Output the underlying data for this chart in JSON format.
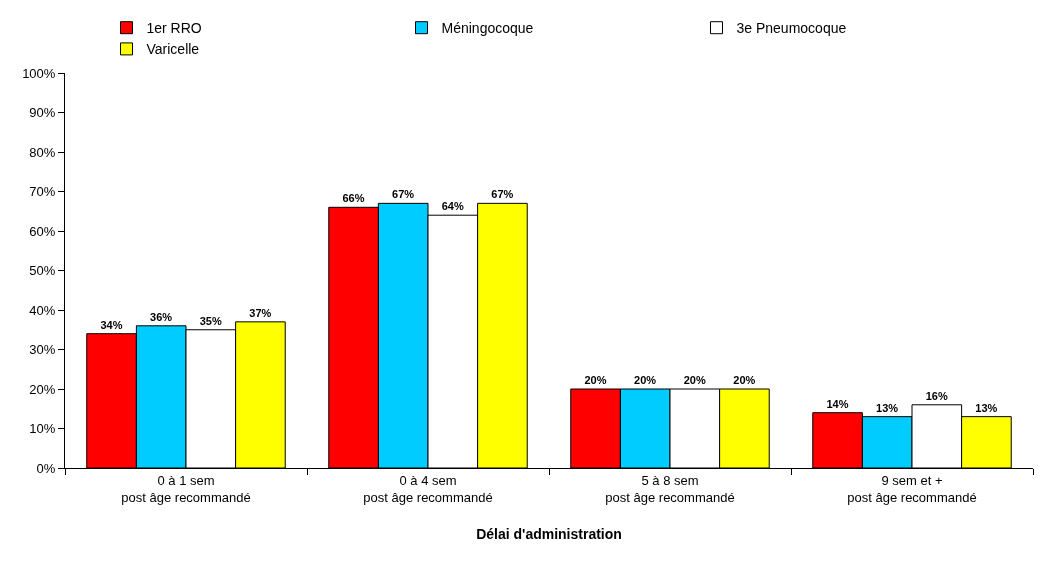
{
  "chart_data": {
    "type": "bar",
    "xlabel": "Délai d'administration",
    "categories": [
      "0 à 1 sem\npost âge recommandé",
      "0 à 4 sem\npost âge recommandé",
      "5 à 8 sem\npost âge recommandé",
      "9 sem et +\npost âge recommandé"
    ],
    "series": [
      {
        "name": "1er RRO",
        "color": "#ff0000",
        "values": [
          34,
          66,
          20,
          14
        ],
        "value_labels": [
          "34%",
          "66%",
          "20%",
          "14%"
        ]
      },
      {
        "name": "Méningocoque",
        "color": "#00ccff",
        "values": [
          36,
          67,
          20,
          13
        ],
        "value_labels": [
          "36%",
          "67%",
          "20%",
          "13%"
        ]
      },
      {
        "name": "3e Pneumocoque",
        "color": "#ffffff",
        "values": [
          35,
          64,
          20,
          16
        ],
        "value_labels": [
          "35%",
          "64%",
          "20%",
          "16%"
        ]
      },
      {
        "name": "Varicelle",
        "color": "#ffff00",
        "values": [
          37,
          67,
          20,
          13
        ],
        "value_labels": [
          "37%",
          "67%",
          "20%",
          "13%"
        ]
      }
    ],
    "ylim": [
      0,
      100
    ],
    "yticks": [
      {
        "value": 0,
        "label": "0%"
      },
      {
        "value": 10,
        "label": "10%"
      },
      {
        "value": 20,
        "label": "20%"
      },
      {
        "value": 30,
        "label": "30%"
      },
      {
        "value": 40,
        "label": "40%"
      },
      {
        "value": 50,
        "label": "50%"
      },
      {
        "value": 60,
        "label": "60%"
      },
      {
        "value": 70,
        "label": "70%"
      },
      {
        "value": 80,
        "label": "80%"
      },
      {
        "value": 90,
        "label": "90%"
      },
      {
        "value": 100,
        "label": "100%"
      }
    ],
    "grid": false,
    "legend": "top"
  }
}
